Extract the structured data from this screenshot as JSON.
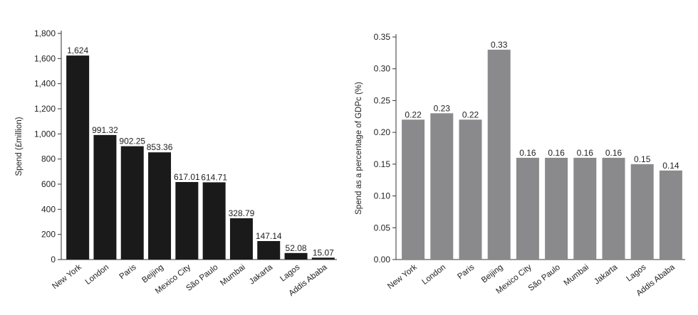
{
  "chart_data": [
    {
      "type": "bar",
      "categories": [
        "New York",
        "London",
        "Paris",
        "Beijing",
        "Mexico City",
        "São Paulo",
        "Mumbai",
        "Jakarta",
        "Lagos",
        "Addis Ababa"
      ],
      "values": [
        1624,
        991.32,
        902.25,
        853.36,
        617.01,
        614.71,
        328.79,
        147.14,
        52.08,
        15.07
      ],
      "data_labels": [
        "1,624",
        "991.32",
        "902.25",
        "853.36",
        "617.01",
        "614.71",
        "328.79",
        "147.14",
        "52.08",
        "15.07"
      ],
      "ylabel": "Spend (£million)",
      "ylim": [
        0,
        1800
      ],
      "yticks": [
        0,
        200,
        400,
        600,
        800,
        1000,
        1200,
        1400,
        1600,
        1800
      ],
      "ytick_labels": [
        "0",
        "200",
        "400",
        "600",
        "800",
        "1,000",
        "1,200",
        "1,400",
        "1,600",
        "1,800"
      ],
      "bar_color": "#1a1a1a",
      "grid": false
    },
    {
      "type": "bar",
      "categories": [
        "New York",
        "London",
        "Paris",
        "Beijing",
        "Mexico City",
        "São Paulo",
        "Mumbai",
        "Jakarta",
        "Lagos",
        "Addis Ababa"
      ],
      "values": [
        0.22,
        0.23,
        0.22,
        0.33,
        0.16,
        0.16,
        0.16,
        0.16,
        0.15,
        0.14
      ],
      "data_labels": [
        "0.22",
        "0.23",
        "0.22",
        "0.33",
        "0.16",
        "0.16",
        "0.16",
        "0.16",
        "0.15",
        "0.14"
      ],
      "ylabel": "Spend as a percentage of GDPc (%)",
      "ylim": [
        0,
        0.35
      ],
      "yticks": [
        0,
        0.05,
        0.1,
        0.15,
        0.2,
        0.25,
        0.3,
        0.35
      ],
      "ytick_labels": [
        "0.00",
        "0.05",
        "0.10",
        "0.15",
        "0.20",
        "0.25",
        "0.30",
        "0.35"
      ],
      "bar_color": "#8a8a8c",
      "grid": false
    }
  ]
}
